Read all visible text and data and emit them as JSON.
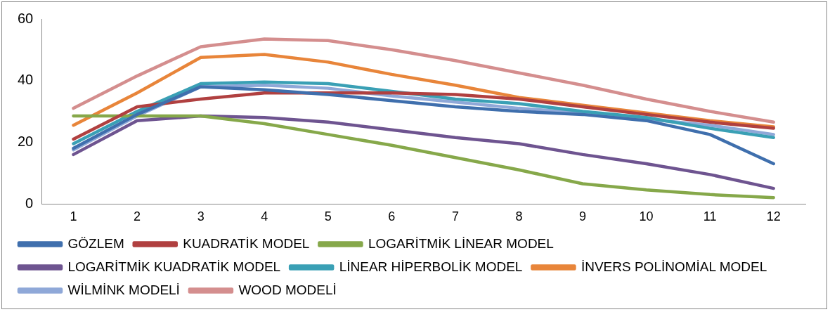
{
  "chart_data": {
    "type": "line",
    "categories": [
      "1",
      "2",
      "3",
      "4",
      "5",
      "6",
      "7",
      "8",
      "9",
      "10",
      "11",
      "12"
    ],
    "ylim": [
      0,
      60
    ],
    "yticks": [
      0,
      20,
      40,
      60
    ],
    "grid": false,
    "legend": "bottom",
    "marker": "none",
    "line_style": "solid",
    "series": [
      {
        "name": "GÖZLEM",
        "color": "#3f6fad",
        "values": [
          18,
          29,
          38,
          37,
          35.5,
          33.5,
          31.5,
          30,
          29,
          27,
          22.5,
          13
        ]
      },
      {
        "name": "KUADRATİK MODEL",
        "color": "#b04040",
        "values": [
          21,
          31.5,
          34,
          36,
          36,
          36,
          35.5,
          34,
          31.5,
          29,
          26.5,
          24.5
        ]
      },
      {
        "name": "LOGARİTMİK LİNEAR MODEL",
        "color": "#86a84a",
        "values": [
          28.5,
          28.5,
          28.5,
          26,
          22.5,
          19,
          15,
          11,
          6.5,
          4.5,
          3,
          2
        ]
      },
      {
        "name": "LOGARİTMİK KUADRATİK MODEL",
        "color": "#6e5490",
        "values": [
          16,
          27,
          28.5,
          28,
          26.5,
          24,
          21.5,
          19.5,
          16,
          13,
          9.5,
          5
        ]
      },
      {
        "name": "LİNEAR HİPERBOLİK MODEL",
        "color": "#3aa0b5",
        "values": [
          19.5,
          30,
          39,
          39.5,
          39,
          36.5,
          34,
          32.5,
          30,
          28,
          24.5,
          21.5
        ]
      },
      {
        "name": "İNVERS POLİNOMİAL MODEL",
        "color": "#e8853a",
        "values": [
          25.5,
          36,
          47.5,
          48.5,
          46,
          42,
          38.5,
          34.5,
          32,
          29.5,
          27,
          25
        ]
      },
      {
        "name": "WİLMİNK MODELİ",
        "color": "#8fa8d8",
        "values": [
          17.5,
          28.5,
          38,
          38.5,
          37.5,
          35,
          33,
          31,
          29.5,
          27.5,
          25.5,
          22.5
        ]
      },
      {
        "name": "WOOD MODELİ",
        "color": "#d48e8e",
        "values": [
          31,
          41.5,
          51,
          53.5,
          53,
          50,
          46.5,
          42.5,
          38.5,
          34,
          30,
          26.5
        ]
      }
    ]
  }
}
